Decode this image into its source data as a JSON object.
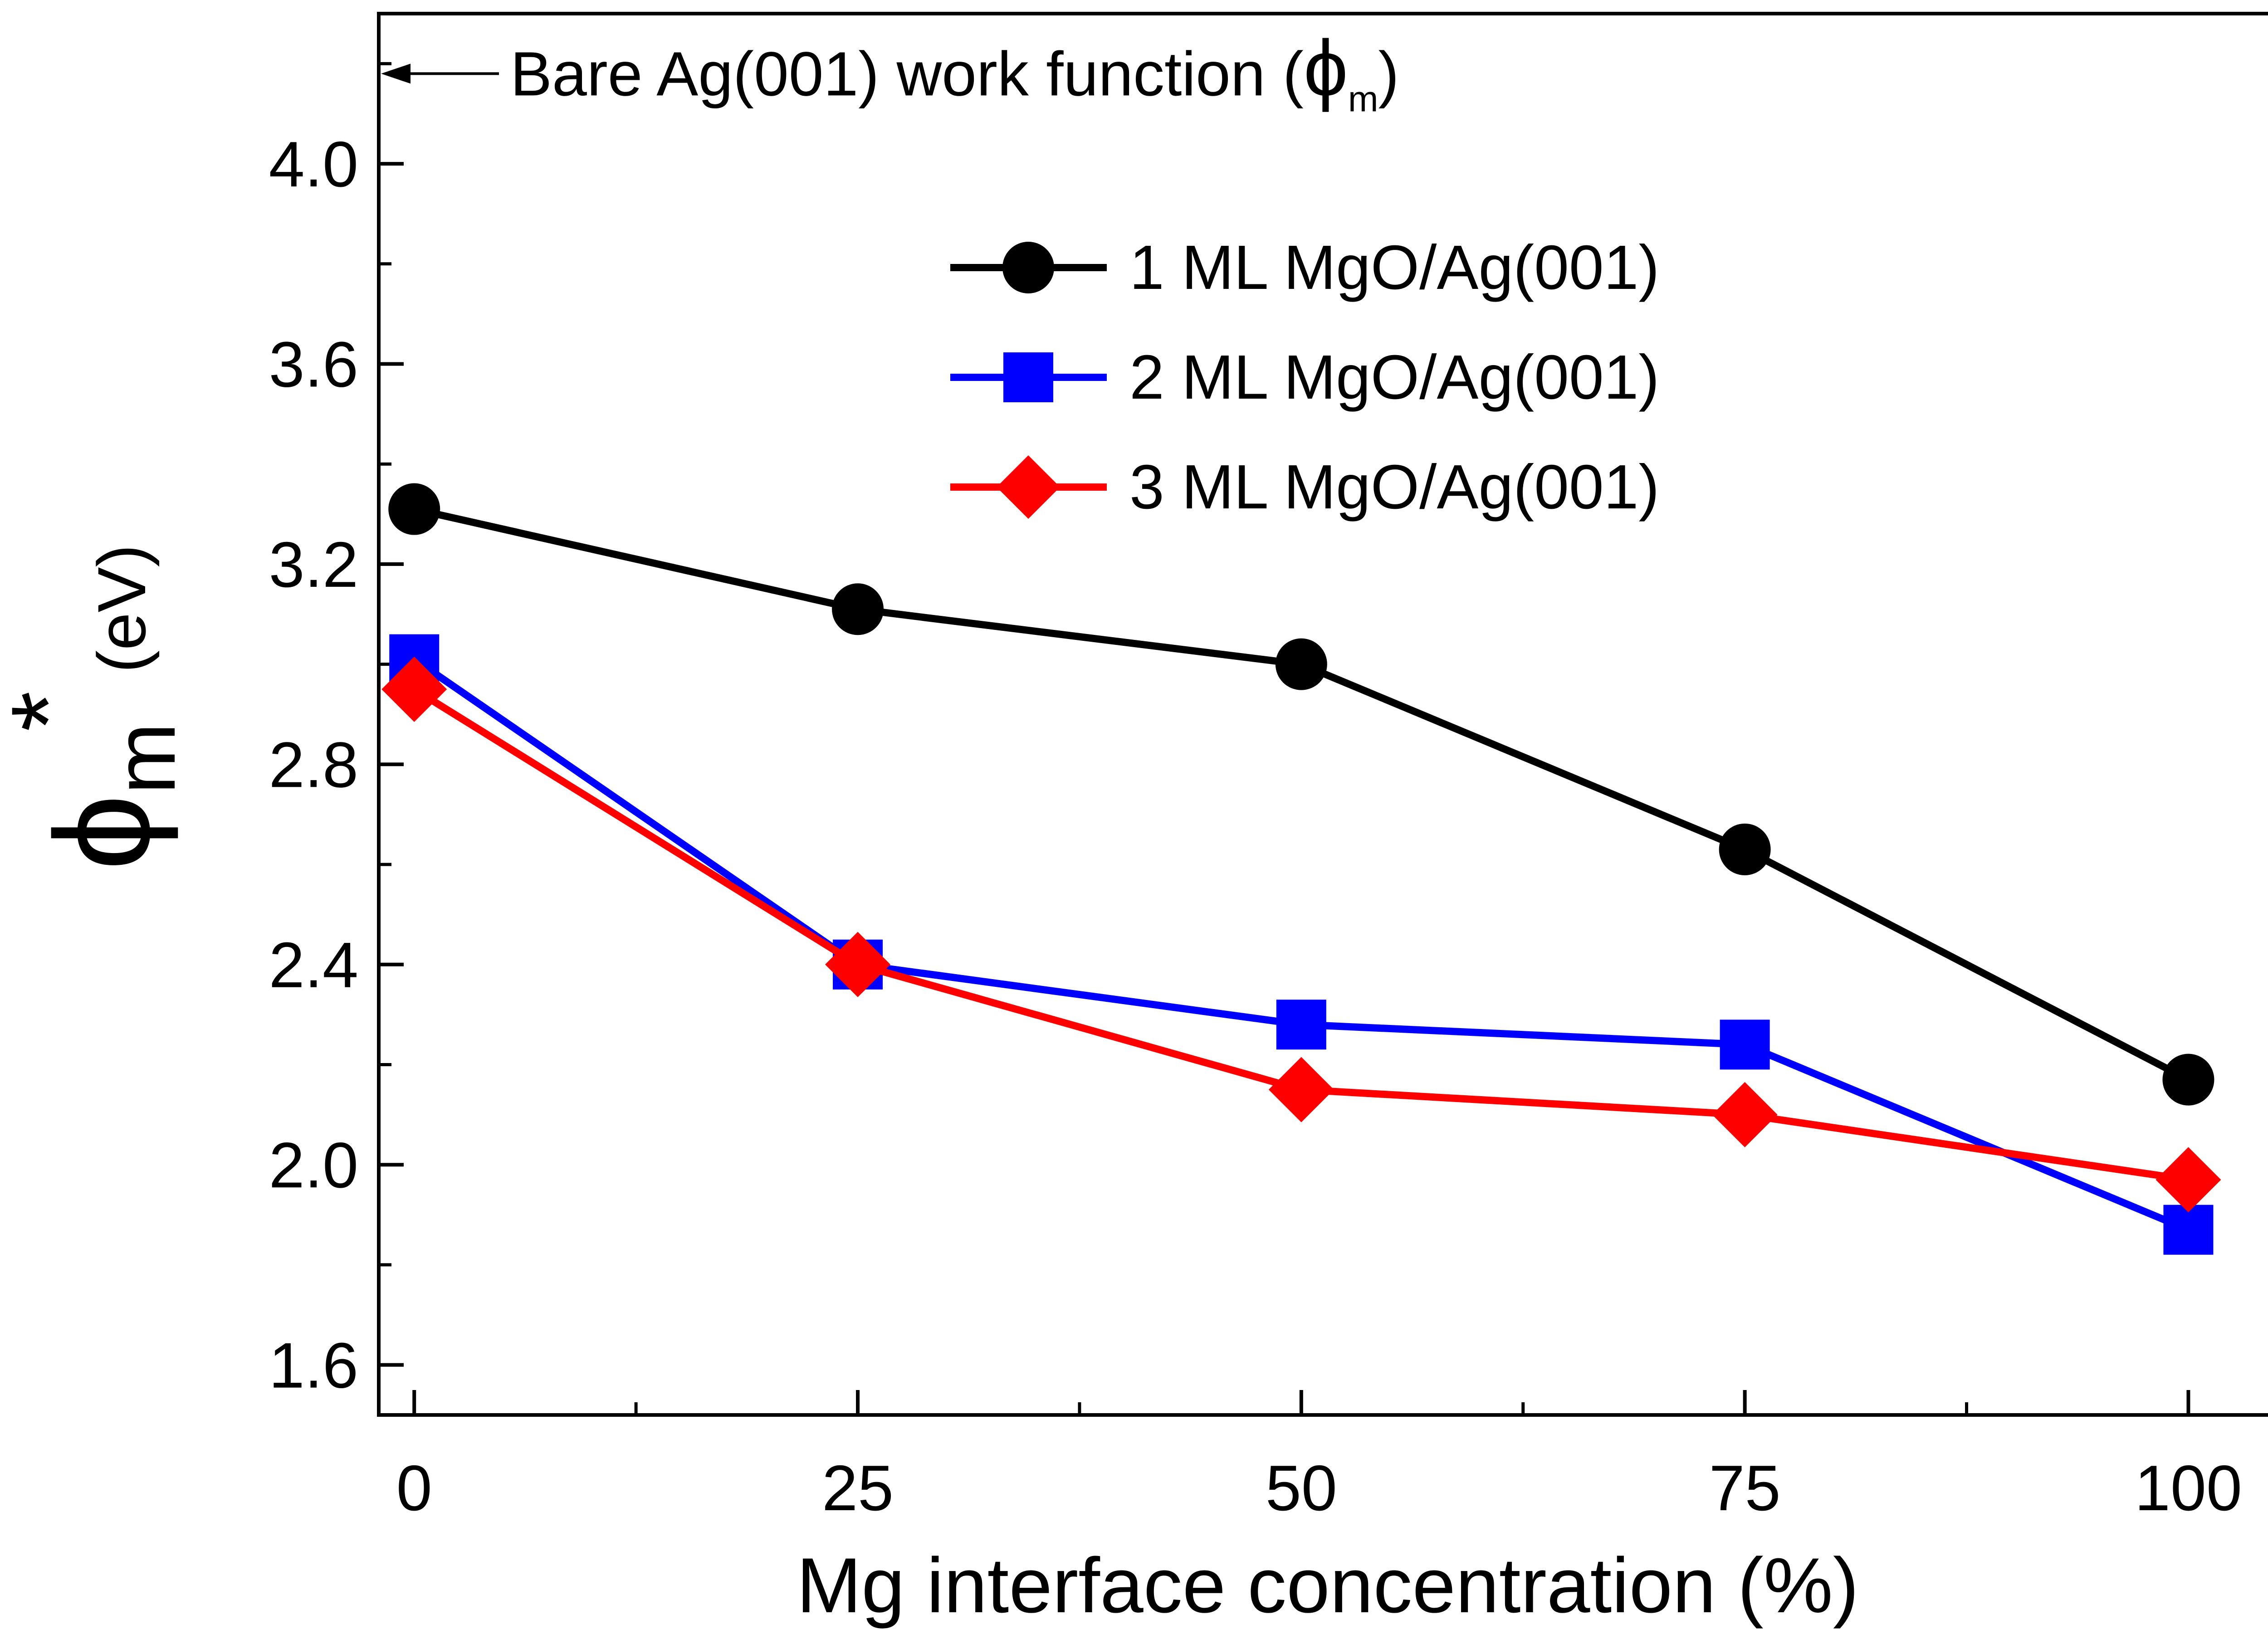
{
  "chart_data": {
    "type": "line",
    "title": "",
    "xlabel": "Mg interface concentration (%)",
    "ylabel": {
      "symbol": "ϕ",
      "subscript": "m",
      "superscript": "*",
      "unit": "(eV)"
    },
    "x": [
      0,
      25,
      50,
      75,
      100
    ],
    "xlim": [
      -2,
      105
    ],
    "ylim": [
      1.5,
      4.3
    ],
    "x_ticks": [
      0,
      25,
      50,
      75,
      100
    ],
    "x_tick_labels": [
      "0",
      "25",
      "50",
      "75",
      "100"
    ],
    "x_minor_ticks": [
      12.5,
      37.5,
      62.5,
      87.5
    ],
    "y_ticks": [
      1.6,
      2.0,
      2.4,
      2.8,
      3.2,
      3.6,
      4.0
    ],
    "y_tick_labels": [
      "1.6",
      "2.0",
      "2.4",
      "2.8",
      "3.2",
      "3.6",
      "4.0"
    ],
    "y_minor_ticks": [
      1.8,
      2.2,
      2.6,
      3.0,
      3.4,
      3.8,
      4.2
    ],
    "grid": false,
    "legend_position": "top-right",
    "series": [
      {
        "name": "1 ML MgO/Ag(001)",
        "marker": "circle",
        "color": "#000000",
        "values": [
          3.31,
          3.11,
          3.0,
          2.63,
          2.17
        ]
      },
      {
        "name": "2 ML MgO/Ag(001)",
        "marker": "square",
        "color": "#0000FF",
        "values": [
          3.01,
          2.4,
          2.28,
          2.24,
          1.87
        ]
      },
      {
        "name": "3 ML MgO/Ag(001)",
        "marker": "diamond",
        "color": "#FF0000",
        "values": [
          2.95,
          2.4,
          2.15,
          2.1,
          1.97
        ]
      }
    ],
    "annotation": {
      "text": "Bare Ag(001) work function (",
      "symbol": "ϕ",
      "subscript": "m",
      "close": ")",
      "y_value": 4.18
    }
  }
}
